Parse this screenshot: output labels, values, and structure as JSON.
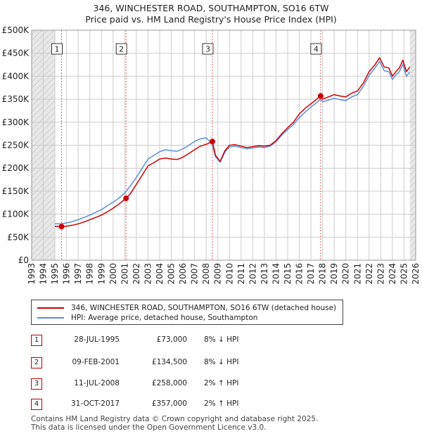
{
  "title_line1": "346, WINCHESTER ROAD, SOUTHAMPTON, SO16 6TW",
  "title_line2": "Price paid vs. HM Land Registry's House Price Index (HPI)",
  "colors": {
    "property": "#cc0000",
    "hpi": "#5b8fd6",
    "shade": "#e8e8e8",
    "grid": "#cccccc"
  },
  "chart_data": {
    "type": "line",
    "title": "Price paid vs. HM Land Registry's House Price Index (HPI)",
    "xlim": [
      1993,
      2026
    ],
    "ylim": [
      0,
      500000
    ],
    "y_ticks": [
      0,
      50000,
      100000,
      150000,
      200000,
      250000,
      300000,
      350000,
      400000,
      450000,
      500000
    ],
    "y_tick_labels": [
      "£0",
      "£50K",
      "£100K",
      "£150K",
      "£200K",
      "£250K",
      "£300K",
      "£350K",
      "£400K",
      "£450K",
      "£500K"
    ],
    "x_ticks": [
      1993,
      1994,
      1995,
      1996,
      1997,
      1998,
      1999,
      2000,
      2001,
      2002,
      2003,
      2004,
      2005,
      2006,
      2007,
      2008,
      2009,
      2010,
      2011,
      2012,
      2013,
      2014,
      2015,
      2016,
      2017,
      2018,
      2019,
      2020,
      2021,
      2022,
      2023,
      2024,
      2025,
      2026
    ],
    "x_tick_labels": [
      "1993",
      "1994",
      "1995",
      "1996",
      "1997",
      "1998",
      "1999",
      "2000",
      "2001",
      "2002",
      "2003",
      "2004",
      "2005",
      "2006",
      "2007",
      "2008",
      "2009",
      "2010",
      "2011",
      "2012",
      "2013",
      "2014",
      "2015",
      "2016",
      "2017",
      "2018",
      "2019",
      "2020",
      "2021",
      "2022",
      "2023",
      "2024",
      "2025",
      "2026"
    ],
    "shaded_before": 1995.0,
    "shaded_after": 2025.5,
    "series": [
      {
        "name": "346, WINCHESTER ROAD, SOUTHAMPTON, SO16 6TW (detached house)",
        "x": [
          1995.0,
          1995.57,
          1996.0,
          1996.5,
          1997.0,
          1997.5,
          1998.0,
          1998.5,
          1999.0,
          1999.5,
          2000.0,
          2000.5,
          2001.11,
          2001.5,
          2002.0,
          2002.5,
          2003.0,
          2003.5,
          2004.0,
          2004.5,
          2005.0,
          2005.5,
          2006.0,
          2006.5,
          2007.0,
          2007.5,
          2008.0,
          2008.53,
          2008.8,
          2009.2,
          2009.6,
          2010.0,
          2010.5,
          2011.0,
          2011.5,
          2012.0,
          2012.5,
          2013.0,
          2013.5,
          2014.0,
          2014.5,
          2015.0,
          2015.5,
          2016.0,
          2016.5,
          2017.0,
          2017.5,
          2017.83,
          2018.0,
          2018.5,
          2019.0,
          2019.5,
          2020.0,
          2020.5,
          2021.0,
          2021.5,
          2022.0,
          2022.5,
          2022.9,
          2023.3,
          2023.7,
          2024.0,
          2024.3,
          2024.6,
          2024.9,
          2025.2,
          2025.5
        ],
        "values": [
          74000,
          73000,
          74000,
          76000,
          79000,
          83000,
          88000,
          93000,
          98000,
          105000,
          113000,
          122000,
          134500,
          145000,
          165000,
          185000,
          205000,
          212000,
          220000,
          222000,
          220000,
          219000,
          224000,
          232000,
          240000,
          248000,
          252000,
          258000,
          228000,
          215000,
          238000,
          250000,
          251000,
          248000,
          245000,
          247000,
          249000,
          248000,
          250000,
          260000,
          275000,
          288000,
          300000,
          318000,
          330000,
          340000,
          350000,
          357000,
          350000,
          355000,
          360000,
          357000,
          355000,
          363000,
          368000,
          385000,
          410000,
          425000,
          440000,
          420000,
          418000,
          400000,
          410000,
          418000,
          435000,
          410000,
          420000
        ]
      },
      {
        "name": "HPI: Average price, detached house, Southampton",
        "x": [
          1995.0,
          1995.5,
          1996.0,
          1996.5,
          1997.0,
          1997.5,
          1998.0,
          1998.5,
          1999.0,
          1999.5,
          2000.0,
          2000.5,
          2001.0,
          2001.5,
          2002.0,
          2002.5,
          2003.0,
          2003.5,
          2004.0,
          2004.5,
          2005.0,
          2005.5,
          2006.0,
          2006.5,
          2007.0,
          2007.5,
          2008.0,
          2008.5,
          2008.8,
          2009.2,
          2009.6,
          2010.0,
          2010.5,
          2011.0,
          2011.5,
          2012.0,
          2012.5,
          2013.0,
          2013.5,
          2014.0,
          2014.5,
          2015.0,
          2015.5,
          2016.0,
          2016.5,
          2017.0,
          2017.5,
          2017.83,
          2018.0,
          2018.5,
          2019.0,
          2019.5,
          2020.0,
          2020.5,
          2021.0,
          2021.5,
          2022.0,
          2022.5,
          2022.9,
          2023.3,
          2023.7,
          2024.0,
          2024.3,
          2024.6,
          2024.9,
          2025.2,
          2025.5
        ],
        "values": [
          79000,
          79000,
          81000,
          84000,
          88000,
          93000,
          98000,
          104000,
          110000,
          118000,
          126000,
          135000,
          146000,
          162000,
          180000,
          200000,
          220000,
          228000,
          236000,
          240000,
          238000,
          237000,
          242000,
          250000,
          258000,
          264000,
          266000,
          253000,
          225000,
          213000,
          235000,
          246000,
          248000,
          245000,
          242000,
          244000,
          246000,
          245000,
          248000,
          258000,
          272000,
          284000,
          295000,
          310000,
          322000,
          333000,
          343000,
          350000,
          344000,
          348000,
          352000,
          349000,
          347000,
          355000,
          360000,
          378000,
          402000,
          418000,
          432000,
          412000,
          410000,
          393000,
          403000,
          410000,
          426000,
          400000,
          410000
        ]
      }
    ],
    "sale_markers": [
      {
        "label": "1",
        "x": 1995.57,
        "value": 73000
      },
      {
        "label": "2",
        "x": 2001.11,
        "value": 134500
      },
      {
        "label": "3",
        "x": 2008.53,
        "value": 258000
      },
      {
        "label": "4",
        "x": 2017.83,
        "value": 357000
      }
    ]
  },
  "legend": {
    "property_label": "346, WINCHESTER ROAD, SOUTHAMPTON, SO16 6TW (detached house)",
    "hpi_label": "HPI: Average price, detached house, Southampton"
  },
  "transactions": [
    {
      "num": "1",
      "date": "28-JUL-1995",
      "price": "£73,000",
      "hpi": "8% ↓ HPI"
    },
    {
      "num": "2",
      "date": "09-FEB-2001",
      "price": "£134,500",
      "hpi": "8% ↓ HPI"
    },
    {
      "num": "3",
      "date": "11-JUL-2008",
      "price": "£258,000",
      "hpi": "2% ↑ HPI"
    },
    {
      "num": "4",
      "date": "31-OCT-2017",
      "price": "£357,000",
      "hpi": "2% ↑ HPI"
    }
  ],
  "footer_line1": "Contains HM Land Registry data © Crown copyright and database right 2025.",
  "footer_line2": "This data is licensed under the Open Government Licence v3.0."
}
